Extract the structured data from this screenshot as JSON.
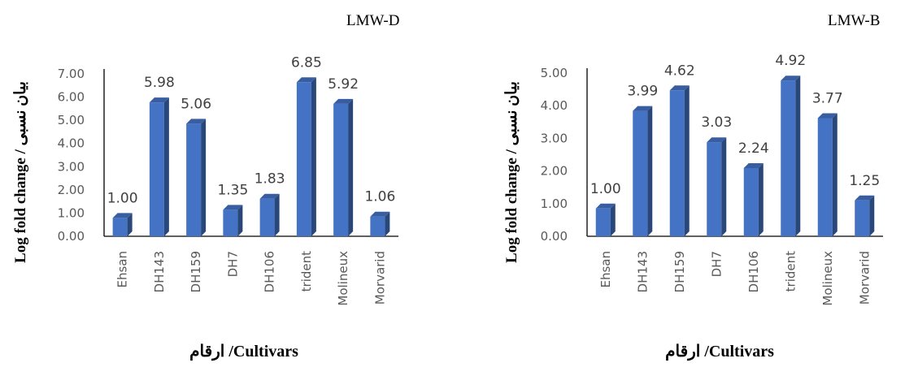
{
  "chart_data": [
    {
      "type": "bar",
      "title": "LMW-D",
      "xlabel": "ارقام /Cultivars",
      "ylabel": "Log fold change / بیان نسبی",
      "categories": [
        "Ehsan",
        "DH143",
        "DH159",
        "DH7",
        "DH106",
        "trident",
        "Molineux",
        "Morvarid"
      ],
      "values": [
        1.0,
        5.98,
        5.06,
        1.35,
        1.83,
        6.85,
        5.92,
        1.06
      ],
      "data_labels": [
        "1.00",
        "5.98",
        "5.06",
        "1.35",
        "1.83",
        "6.85",
        "5.92",
        "1.06"
      ],
      "ylim": [
        0,
        7
      ],
      "yticks": [
        "0.00",
        "1.00",
        "2.00",
        "3.00",
        "4.00",
        "5.00",
        "6.00",
        "7.00"
      ],
      "bar_color": "#4472C4",
      "grid": false,
      "legend": "none"
    },
    {
      "type": "bar",
      "title": "LMW-B",
      "xlabel": "ارقام /Cultivars",
      "ylabel": "Log fold change / بیان نسبی",
      "categories": [
        "Ehsan",
        "DH143",
        "DH159",
        "DH7",
        "DH106",
        "trident",
        "Molineux",
        "Morvarid"
      ],
      "values": [
        1.0,
        3.99,
        4.62,
        3.03,
        2.24,
        4.92,
        3.77,
        1.25
      ],
      "data_labels": [
        "1.00",
        "3.99",
        "4.62",
        "3.03",
        "2.24",
        "4.92",
        "3.77",
        "1.25"
      ],
      "ylim": [
        0,
        5
      ],
      "yticks": [
        "0.00",
        "1.00",
        "2.00",
        "3.00",
        "4.00",
        "5.00"
      ],
      "bar_color": "#4472C4",
      "grid": false,
      "legend": "none"
    }
  ]
}
